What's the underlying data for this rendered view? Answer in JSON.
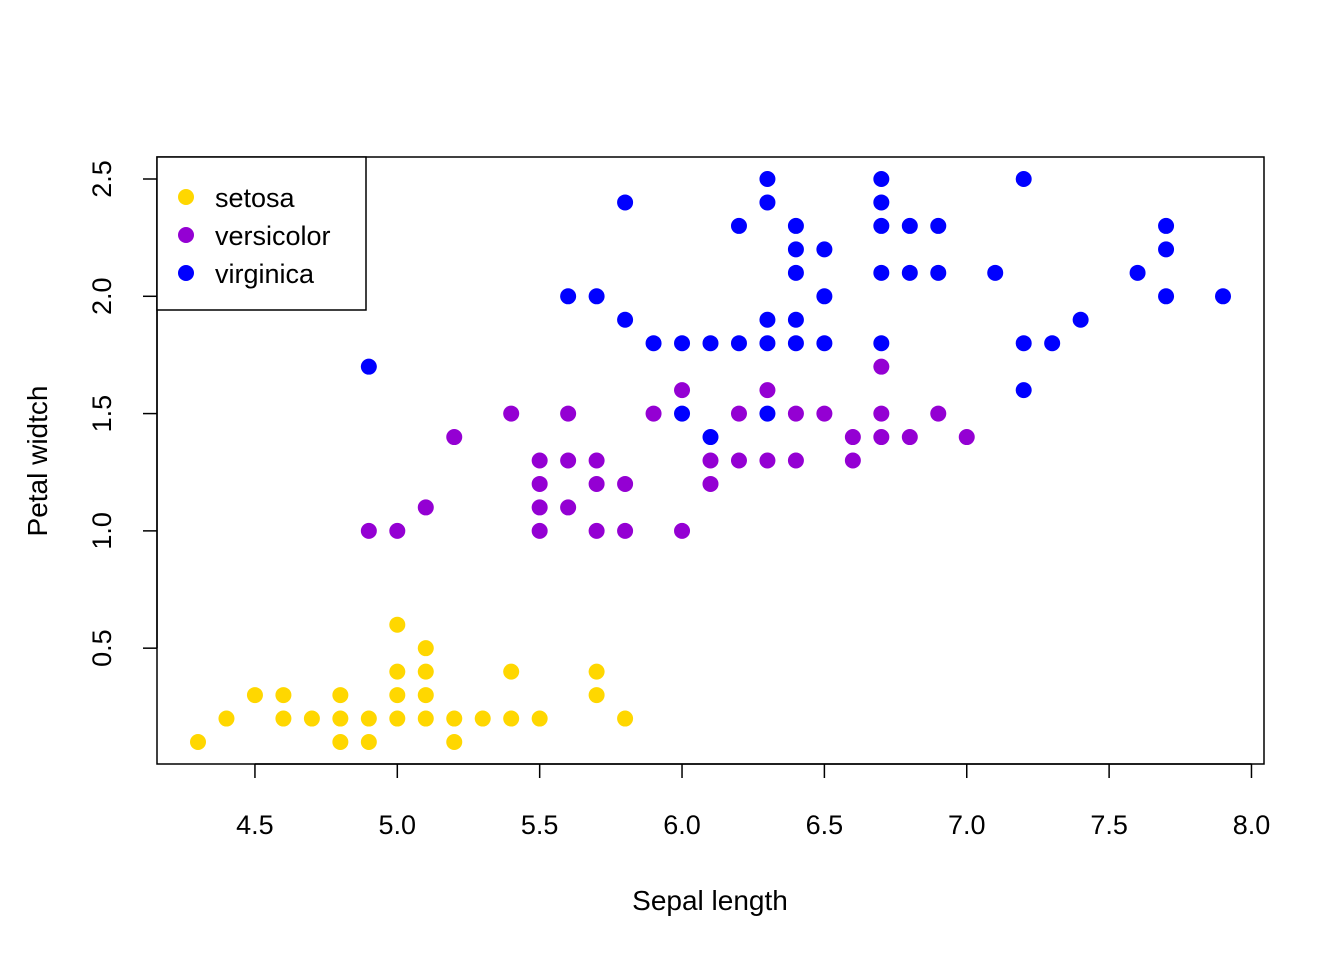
{
  "chart_data": {
    "type": "scatter",
    "title": "",
    "xlabel": "Sepal length",
    "ylabel": "Petal widtch",
    "xlim": [
      4.3,
      7.9
    ],
    "ylim": [
      0.1,
      2.5
    ],
    "xticks": [
      "4.5",
      "5.0",
      "5.5",
      "6.0",
      "6.5",
      "7.0",
      "7.5",
      "8.0"
    ],
    "yticks": [
      "0.5",
      "1.0",
      "1.5",
      "2.0",
      "2.5"
    ],
    "grid": false,
    "legend": {
      "position": "top-left"
    },
    "series": [
      {
        "name": "setosa",
        "color": "#FFD700",
        "points": [
          [
            4.3,
            0.1
          ],
          [
            4.4,
            0.2
          ],
          [
            4.5,
            0.3
          ],
          [
            4.6,
            0.3
          ],
          [
            4.6,
            0.2
          ],
          [
            4.7,
            0.2
          ],
          [
            4.8,
            0.3
          ],
          [
            4.8,
            0.2
          ],
          [
            4.8,
            0.1
          ],
          [
            4.9,
            0.2
          ],
          [
            4.9,
            0.1
          ],
          [
            5.0,
            0.6
          ],
          [
            5.0,
            0.4
          ],
          [
            5.0,
            0.3
          ],
          [
            5.0,
            0.2
          ],
          [
            5.1,
            0.5
          ],
          [
            5.1,
            0.4
          ],
          [
            5.1,
            0.3
          ],
          [
            5.1,
            0.2
          ],
          [
            5.2,
            0.2
          ],
          [
            5.2,
            0.1
          ],
          [
            5.3,
            0.2
          ],
          [
            5.4,
            0.4
          ],
          [
            5.4,
            0.2
          ],
          [
            5.5,
            0.2
          ],
          [
            5.7,
            0.4
          ],
          [
            5.7,
            0.3
          ],
          [
            5.8,
            0.2
          ]
        ]
      },
      {
        "name": "versicolor",
        "color": "#9400D3",
        "points": [
          [
            4.9,
            1.0
          ],
          [
            5.0,
            1.0
          ],
          [
            5.1,
            1.1
          ],
          [
            5.2,
            1.4
          ],
          [
            5.4,
            1.5
          ],
          [
            5.5,
            1.3
          ],
          [
            5.5,
            1.2
          ],
          [
            5.5,
            1.1
          ],
          [
            5.5,
            1.0
          ],
          [
            5.6,
            1.5
          ],
          [
            5.6,
            1.3
          ],
          [
            5.6,
            1.1
          ],
          [
            5.7,
            1.3
          ],
          [
            5.7,
            1.2
          ],
          [
            5.7,
            1.0
          ],
          [
            5.8,
            1.2
          ],
          [
            5.8,
            1.0
          ],
          [
            5.9,
            1.5
          ],
          [
            6.0,
            1.6
          ],
          [
            6.0,
            1.0
          ],
          [
            6.1,
            1.3
          ],
          [
            6.1,
            1.2
          ],
          [
            6.2,
            1.5
          ],
          [
            6.2,
            1.3
          ],
          [
            6.3,
            1.6
          ],
          [
            6.3,
            1.3
          ],
          [
            6.4,
            1.5
          ],
          [
            6.4,
            1.3
          ],
          [
            6.5,
            1.5
          ],
          [
            6.6,
            1.4
          ],
          [
            6.6,
            1.3
          ],
          [
            6.7,
            1.7
          ],
          [
            6.7,
            1.5
          ],
          [
            6.7,
            1.4
          ],
          [
            6.8,
            1.4
          ],
          [
            6.9,
            1.5
          ],
          [
            7.0,
            1.4
          ]
        ]
      },
      {
        "name": "virginica",
        "color": "#0000FF",
        "points": [
          [
            4.9,
            1.7
          ],
          [
            5.6,
            2.0
          ],
          [
            5.7,
            2.0
          ],
          [
            5.8,
            2.4
          ],
          [
            5.8,
            1.9
          ],
          [
            5.9,
            1.8
          ],
          [
            6.0,
            1.8
          ],
          [
            6.0,
            1.5
          ],
          [
            6.1,
            1.8
          ],
          [
            6.1,
            1.4
          ],
          [
            6.2,
            2.3
          ],
          [
            6.2,
            1.8
          ],
          [
            6.3,
            2.5
          ],
          [
            6.3,
            2.4
          ],
          [
            6.3,
            1.9
          ],
          [
            6.3,
            1.8
          ],
          [
            6.3,
            1.5
          ],
          [
            6.4,
            2.3
          ],
          [
            6.4,
            2.2
          ],
          [
            6.4,
            2.1
          ],
          [
            6.4,
            1.9
          ],
          [
            6.4,
            1.8
          ],
          [
            6.5,
            2.2
          ],
          [
            6.5,
            2.0
          ],
          [
            6.5,
            1.8
          ],
          [
            6.7,
            2.5
          ],
          [
            6.7,
            2.4
          ],
          [
            6.7,
            2.3
          ],
          [
            6.7,
            2.1
          ],
          [
            6.7,
            1.8
          ],
          [
            6.8,
            2.3
          ],
          [
            6.8,
            2.1
          ],
          [
            6.9,
            2.3
          ],
          [
            6.9,
            2.1
          ],
          [
            7.1,
            2.1
          ],
          [
            7.2,
            2.5
          ],
          [
            7.2,
            1.8
          ],
          [
            7.2,
            1.6
          ],
          [
            7.3,
            1.8
          ],
          [
            7.4,
            1.9
          ],
          [
            7.6,
            2.1
          ],
          [
            7.7,
            2.3
          ],
          [
            7.7,
            2.2
          ],
          [
            7.7,
            2.0
          ],
          [
            7.9,
            2.0
          ]
        ]
      }
    ]
  }
}
